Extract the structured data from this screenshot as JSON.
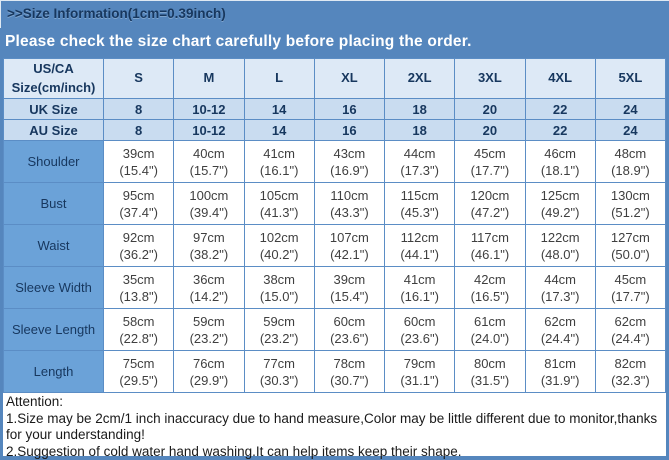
{
  "header": {
    "title": ">>Size Information(1cm=0.39inch)",
    "banner": "Please check the size chart carefully before placing the order."
  },
  "colors": {
    "frame_blue": "#5586bd",
    "title_text": "#17375e",
    "header_bg": "#dde9f6",
    "size_row_bg": "#c9dcf0",
    "label_bg": "#6ba2d8",
    "border_blue": "#5b8dc5",
    "banner_text": "#ffffff",
    "cell_text": "#3f3f3f"
  },
  "chart_data": {
    "type": "table",
    "title": "Size Information",
    "columns": [
      "US/CA Size(cm/inch)",
      "S",
      "M",
      "L",
      "XL",
      "2XL",
      "3XL",
      "4XL",
      "5XL"
    ],
    "size_rows": [
      {
        "label": "UK Size",
        "values": [
          "8",
          "10-12",
          "14",
          "16",
          "18",
          "20",
          "22",
          "24"
        ]
      },
      {
        "label": "AU Size",
        "values": [
          "8",
          "10-12",
          "14",
          "16",
          "18",
          "20",
          "22",
          "24"
        ]
      }
    ],
    "measure_rows": [
      {
        "label": "Shoulder",
        "cells": [
          {
            "cm": "39cm",
            "inch": "(15.4\")"
          },
          {
            "cm": "40cm",
            "inch": "(15.7\")"
          },
          {
            "cm": "41cm",
            "inch": "(16.1\")"
          },
          {
            "cm": "43cm",
            "inch": "(16.9\")"
          },
          {
            "cm": "44cm",
            "inch": "(17.3\")"
          },
          {
            "cm": "45cm",
            "inch": "(17.7\")"
          },
          {
            "cm": "46cm",
            "inch": "(18.1\")"
          },
          {
            "cm": "48cm",
            "inch": "(18.9\")"
          }
        ]
      },
      {
        "label": "Bust",
        "cells": [
          {
            "cm": "95cm",
            "inch": "(37.4\")"
          },
          {
            "cm": "100cm",
            "inch": "(39.4\")"
          },
          {
            "cm": "105cm",
            "inch": "(41.3\")"
          },
          {
            "cm": "110cm",
            "inch": "(43.3\")"
          },
          {
            "cm": "115cm",
            "inch": "(45.3\")"
          },
          {
            "cm": "120cm",
            "inch": "(47.2\")"
          },
          {
            "cm": "125cm",
            "inch": "(49.2\")"
          },
          {
            "cm": "130cm",
            "inch": "(51.2\")"
          }
        ]
      },
      {
        "label": "Waist",
        "cells": [
          {
            "cm": "92cm",
            "inch": "(36.2\")"
          },
          {
            "cm": "97cm",
            "inch": "(38.2\")"
          },
          {
            "cm": "102cm",
            "inch": "(40.2\")"
          },
          {
            "cm": "107cm",
            "inch": "(42.1\")"
          },
          {
            "cm": "112cm",
            "inch": "(44.1\")"
          },
          {
            "cm": "117cm",
            "inch": "(46.1\")"
          },
          {
            "cm": "122cm",
            "inch": "(48.0\")"
          },
          {
            "cm": "127cm",
            "inch": "(50.0\")"
          }
        ]
      },
      {
        "label": "Sleeve Width",
        "cells": [
          {
            "cm": "35cm",
            "inch": "(13.8\")"
          },
          {
            "cm": "36cm",
            "inch": "(14.2\")"
          },
          {
            "cm": "38cm",
            "inch": "(15.0\")"
          },
          {
            "cm": "39cm",
            "inch": "(15.4\")"
          },
          {
            "cm": "41cm",
            "inch": "(16.1\")"
          },
          {
            "cm": "42cm",
            "inch": "(16.5\")"
          },
          {
            "cm": "44cm",
            "inch": "(17.3\")"
          },
          {
            "cm": "45cm",
            "inch": "(17.7\")"
          }
        ]
      },
      {
        "label": "Sleeve Length",
        "cells": [
          {
            "cm": "58cm",
            "inch": "(22.8\")"
          },
          {
            "cm": "59cm",
            "inch": "(23.2\")"
          },
          {
            "cm": "59cm",
            "inch": "(23.2\")"
          },
          {
            "cm": "60cm",
            "inch": "(23.6\")"
          },
          {
            "cm": "60cm",
            "inch": "(23.6\")"
          },
          {
            "cm": "61cm",
            "inch": "(24.0\")"
          },
          {
            "cm": "62cm",
            "inch": "(24.4\")"
          },
          {
            "cm": "62cm",
            "inch": "(24.4\")"
          }
        ]
      },
      {
        "label": "Length",
        "cells": [
          {
            "cm": "75cm",
            "inch": "(29.5\")"
          },
          {
            "cm": "76cm",
            "inch": "(29.9\")"
          },
          {
            "cm": "77cm",
            "inch": "(30.3\")"
          },
          {
            "cm": "78cm",
            "inch": "(30.7\")"
          },
          {
            "cm": "79cm",
            "inch": "(31.1\")"
          },
          {
            "cm": "80cm",
            "inch": "(31.5\")"
          },
          {
            "cm": "81cm",
            "inch": "(31.9\")"
          },
          {
            "cm": "82cm",
            "inch": "(32.3\")"
          }
        ]
      }
    ]
  },
  "attention": {
    "title": "Attention:",
    "lines": [
      "1.Size may be 2cm/1 inch inaccuracy due to hand measure,Color may be little different due to monitor,thanks for your understanding!",
      "2.Suggestion of cold water hand washing.It can help items keep their shape."
    ]
  }
}
